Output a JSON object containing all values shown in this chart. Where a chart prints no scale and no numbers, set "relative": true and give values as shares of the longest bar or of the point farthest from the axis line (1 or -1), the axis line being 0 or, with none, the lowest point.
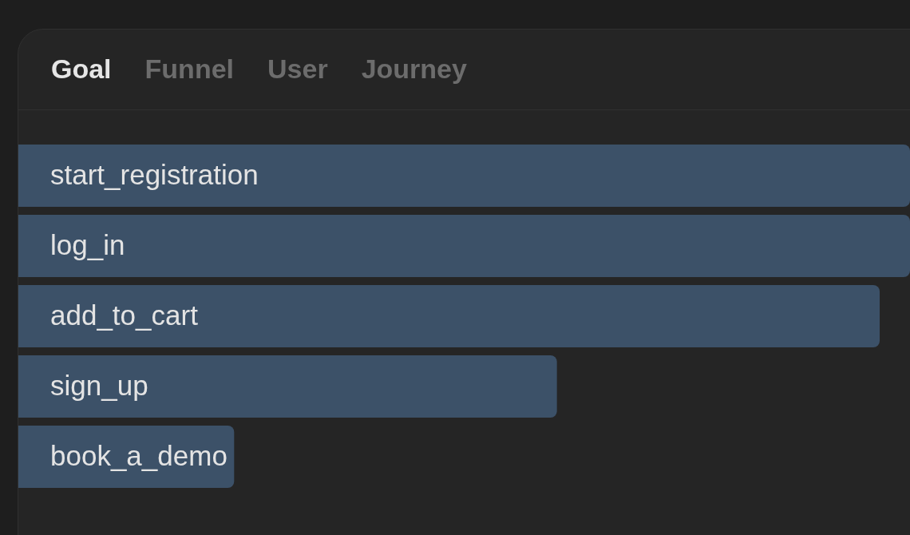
{
  "chart_data": {
    "type": "bar",
    "orientation": "horizontal",
    "relative": true,
    "title": "Goal",
    "annotations": [
      "Funnel",
      "User",
      "Journey"
    ],
    "categories": [
      "start_registration",
      "log_in",
      "add_to_cart",
      "sign_up",
      "book_a_demo"
    ],
    "values": [
      1,
      1,
      0.966,
      0.604,
      0.242
    ],
    "color": "#3c5168"
  }
}
